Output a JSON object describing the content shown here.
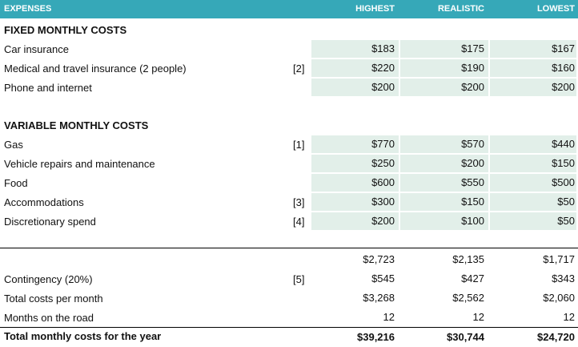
{
  "header": {
    "expenses": "EXPENSES",
    "highest": "HIGHEST",
    "realistic": "REALISTIC",
    "lowest": "LOWEST"
  },
  "fixed": {
    "title": "FIXED MONTHLY COSTS",
    "rows": [
      {
        "label": "Car insurance",
        "ref": "",
        "highest": "$183",
        "realistic": "$175",
        "lowest": "$167"
      },
      {
        "label": "Medical and travel insurance (2 people)",
        "ref": "[2]",
        "highest": "$220",
        "realistic": "$190",
        "lowest": "$160"
      },
      {
        "label": "Phone and internet",
        "ref": "",
        "highest": "$200",
        "realistic": "$200",
        "lowest": "$200"
      }
    ]
  },
  "variable": {
    "title": "VARIABLE MONTHLY COSTS",
    "rows": [
      {
        "label": "Gas",
        "ref": "[1]",
        "highest": "$770",
        "realistic": "$570",
        "lowest": "$440"
      },
      {
        "label": "Vehicle repairs and maintenance",
        "ref": "",
        "highest": "$250",
        "realistic": "$200",
        "lowest": "$150"
      },
      {
        "label": "Food",
        "ref": "",
        "highest": "$600",
        "realistic": "$550",
        "lowest": "$500"
      },
      {
        "label": "Accommodations",
        "ref": "[3]",
        "highest": "$300",
        "realistic": "$150",
        "lowest": "$50"
      },
      {
        "label": "Discretionary spend",
        "ref": "[4]",
        "highest": "$200",
        "realistic": "$100",
        "lowest": "$50"
      }
    ]
  },
  "summary": {
    "subtotal": {
      "highest": "$2,723",
      "realistic": "$2,135",
      "lowest": "$1,717"
    },
    "contingency": {
      "label": "Contingency (20%)",
      "ref": "[5]",
      "highest": "$545",
      "realistic": "$427",
      "lowest": "$343"
    },
    "total_month": {
      "label": "Total costs per month",
      "highest": "$3,268",
      "realistic": "$2,562",
      "lowest": "$2,060"
    },
    "months": {
      "label": "Months on the road",
      "highest": "12",
      "realistic": "12",
      "lowest": "12"
    },
    "total_year": {
      "label": "Total monthly costs for the year",
      "highest": "$39,216",
      "realistic": "$30,744",
      "lowest": "$24,720"
    }
  },
  "colors": {
    "header_bg": "#36a8b8",
    "value_cell_bg": "#e2efe9",
    "rule": "#000000"
  }
}
